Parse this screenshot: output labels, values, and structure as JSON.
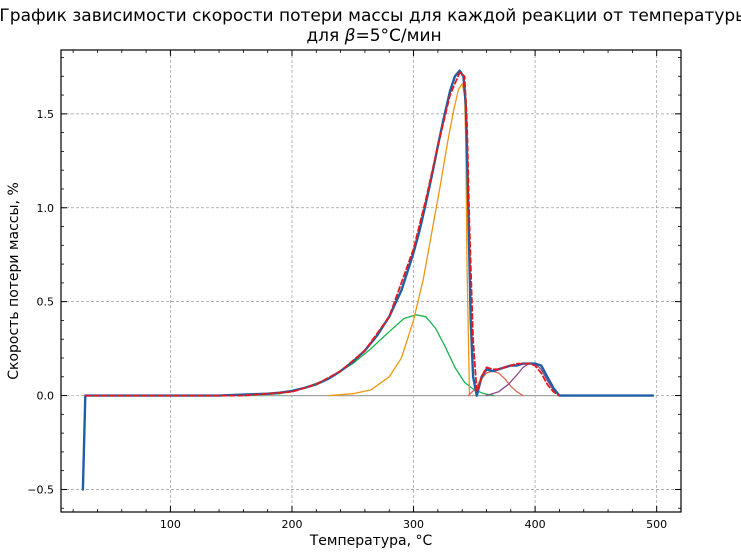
{
  "chart_data": {
    "type": "line",
    "title": "График зависимости скорости потери массы для каждой реакции от температуры",
    "subtitle_prefix": "для ",
    "subtitle_symbol": "β",
    "subtitle_suffix": "=5°C/мин",
    "xlabel": "Температура, °C",
    "ylabel": "Скорость потери массы, %",
    "xlim": [
      10,
      520
    ],
    "ylim": [
      -0.62,
      1.84
    ],
    "xticks": [
      100,
      200,
      300,
      400,
      500
    ],
    "yticks": [
      -0.5,
      0.0,
      0.5,
      1.0,
      1.5
    ],
    "xtick_labels": [
      "100",
      "200",
      "300",
      "400",
      "500"
    ],
    "ytick_labels": [
      "−0.5",
      "0.0",
      "0.5",
      "1.0",
      "1.5"
    ],
    "grid": true,
    "colors": {
      "experimental": "#1f5fa6",
      "fit_sum": "#e41a1c",
      "reaction_1": "#19b34d",
      "reaction_2": "#f0960f",
      "reaction_3": "#d96a55",
      "reaction_4": "#8f4a8c",
      "baseline": "#a3a3a3"
    },
    "series": [
      {
        "key": "experimental",
        "x": [
          28,
          30,
          32,
          40,
          60,
          80,
          100,
          120,
          140,
          160,
          180,
          190,
          200,
          210,
          220,
          230,
          240,
          250,
          260,
          270,
          280,
          290,
          295,
          300,
          305,
          310,
          315,
          320,
          325,
          330,
          334,
          338,
          341,
          343,
          345,
          347,
          349,
          352,
          356,
          360,
          365,
          370,
          375,
          380,
          385,
          390,
          395,
          400,
          405,
          410,
          415,
          420,
          440,
          460,
          480,
          497
        ],
        "y": [
          -0.5,
          0.0,
          0.0,
          0.0,
          0.0,
          0.0,
          0.0,
          0.0,
          0.0,
          0.005,
          0.01,
          0.015,
          0.025,
          0.04,
          0.06,
          0.09,
          0.13,
          0.18,
          0.24,
          0.32,
          0.42,
          0.56,
          0.66,
          0.76,
          0.88,
          1.02,
          1.17,
          1.33,
          1.48,
          1.62,
          1.7,
          1.73,
          1.7,
          1.55,
          1.0,
          0.4,
          0.1,
          0.0,
          0.1,
          0.14,
          0.13,
          0.14,
          0.15,
          0.16,
          0.16,
          0.17,
          0.17,
          0.17,
          0.16,
          0.1,
          0.04,
          0.0,
          0.0,
          0.0,
          0.0,
          0.0
        ]
      },
      {
        "key": "fit_sum",
        "x": [
          30,
          100,
          160,
          200,
          220,
          240,
          260,
          280,
          300,
          310,
          320,
          330,
          338,
          342,
          344,
          346,
          349,
          352,
          356,
          360,
          365,
          370,
          375,
          380,
          385,
          390,
          395,
          400,
          405,
          410,
          415,
          420
        ],
        "y": [
          0.0,
          0.0,
          0.0,
          0.02,
          0.06,
          0.13,
          0.24,
          0.42,
          0.78,
          1.04,
          1.33,
          1.6,
          1.72,
          1.7,
          1.45,
          0.9,
          0.3,
          0.02,
          0.1,
          0.15,
          0.14,
          0.14,
          0.15,
          0.16,
          0.17,
          0.17,
          0.17,
          0.16,
          0.12,
          0.06,
          0.02,
          0.0
        ]
      },
      {
        "key": "reaction_1",
        "x": [
          160,
          190,
          210,
          230,
          250,
          265,
          280,
          292,
          302,
          310,
          318,
          326,
          334,
          342,
          350,
          358,
          366
        ],
        "y": [
          0.0,
          0.01,
          0.04,
          0.09,
          0.17,
          0.25,
          0.34,
          0.41,
          0.43,
          0.42,
          0.36,
          0.26,
          0.15,
          0.07,
          0.03,
          0.01,
          0.0
        ]
      },
      {
        "key": "reaction_2",
        "x": [
          230,
          250,
          265,
          280,
          290,
          300,
          308,
          315,
          322,
          328,
          333,
          337,
          340,
          342,
          343,
          344,
          346
        ],
        "y": [
          0.0,
          0.01,
          0.03,
          0.1,
          0.2,
          0.4,
          0.62,
          0.87,
          1.12,
          1.35,
          1.52,
          1.63,
          1.66,
          1.6,
          1.35,
          0.7,
          0.0
        ]
      },
      {
        "key": "reaction_3",
        "x": [
          345,
          350,
          355,
          360,
          365,
          370,
          375,
          380,
          385,
          390
        ],
        "y": [
          0.0,
          0.03,
          0.08,
          0.12,
          0.13,
          0.12,
          0.09,
          0.05,
          0.02,
          0.0
        ]
      },
      {
        "key": "reaction_4",
        "x": [
          360,
          370,
          378,
          385,
          390,
          395,
          400,
          405,
          410,
          415,
          420
        ],
        "y": [
          0.0,
          0.02,
          0.06,
          0.11,
          0.15,
          0.17,
          0.17,
          0.14,
          0.08,
          0.03,
          0.0
        ]
      },
      {
        "key": "baseline",
        "x": [
          30,
          497
        ],
        "y": [
          0.0,
          0.0
        ]
      }
    ]
  }
}
